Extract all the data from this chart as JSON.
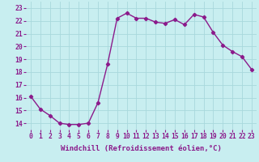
{
  "x": [
    0,
    1,
    2,
    3,
    4,
    5,
    6,
    7,
    8,
    9,
    10,
    11,
    12,
    13,
    14,
    15,
    16,
    17,
    18,
    19,
    20,
    21,
    22,
    23
  ],
  "y": [
    16.1,
    15.1,
    14.6,
    14.0,
    13.9,
    13.9,
    14.0,
    15.6,
    18.6,
    22.2,
    22.6,
    22.2,
    22.2,
    21.9,
    21.8,
    22.1,
    21.7,
    22.5,
    22.3,
    21.1,
    20.1,
    19.6,
    19.2,
    18.2
  ],
  "line_color": "#8b1a8b",
  "marker": "D",
  "marker_size": 2.2,
  "bg_color": "#c8eef0",
  "grid_color": "#a8d8dc",
  "ylim": [
    13.5,
    23.5
  ],
  "yticks": [
    14,
    15,
    16,
    17,
    18,
    19,
    20,
    21,
    22,
    23
  ],
  "xticks": [
    0,
    1,
    2,
    3,
    4,
    5,
    6,
    7,
    8,
    9,
    10,
    11,
    12,
    13,
    14,
    15,
    16,
    17,
    18,
    19,
    20,
    21,
    22,
    23
  ],
  "tick_color": "#8b1a8b",
  "label_color": "#8b1a8b",
  "xlabel": "Windchill (Refroidissement éolien,°C)",
  "xlabel_fontsize": 6.5,
  "tick_fontsize": 5.8,
  "line_width": 1.0
}
